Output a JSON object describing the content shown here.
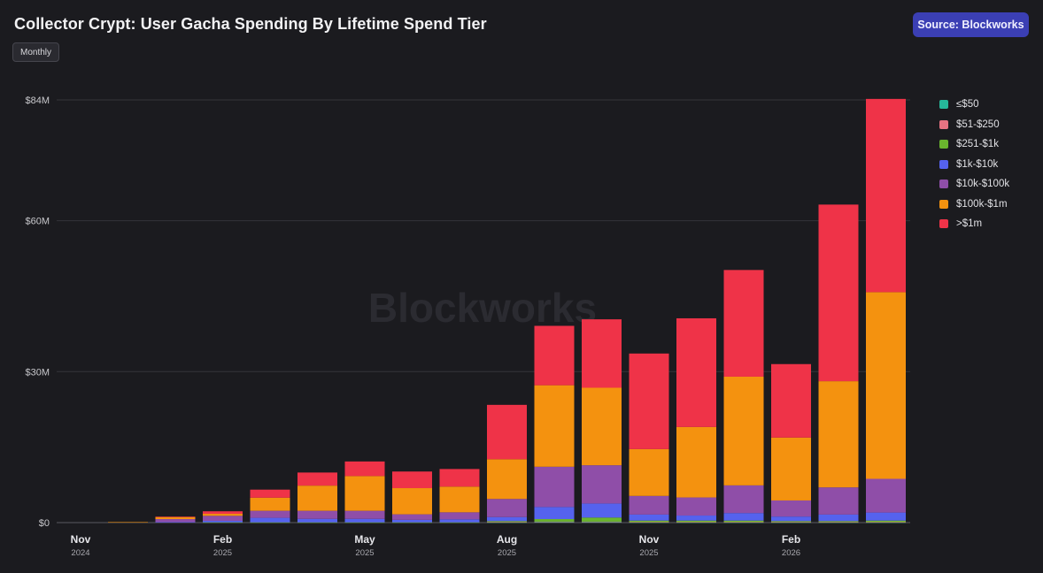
{
  "header": {
    "title": "Collector Crypt: User Gacha Spending By Lifetime Spend Tier",
    "source_label": "Source: Blockworks",
    "period_label": "Monthly"
  },
  "watermark": "Blockworks",
  "colors": {
    "background": "#1b1b1f",
    "accent": "#3b3fb4"
  },
  "chart_data": {
    "type": "bar",
    "stacked": true,
    "title": "Collector Crypt: User Gacha Spending By Lifetime Spend Tier",
    "xlabel": "",
    "ylabel": "",
    "ylim": [
      0,
      84
    ],
    "y_unit": "$M",
    "y_ticks": [
      {
        "value": 0,
        "label": "$0"
      },
      {
        "value": 30,
        "label": "$30M"
      },
      {
        "value": 60,
        "label": "$60M"
      },
      {
        "value": 84,
        "label": "$84M"
      }
    ],
    "x_ticks": [
      {
        "index": 0,
        "month": "Nov",
        "year": "2024"
      },
      {
        "index": 3,
        "month": "Feb",
        "year": "2025"
      },
      {
        "index": 6,
        "month": "May",
        "year": "2025"
      },
      {
        "index": 9,
        "month": "Aug",
        "year": "2025"
      },
      {
        "index": 12,
        "month": "Nov",
        "year": "2025"
      },
      {
        "index": 15,
        "month": "Feb",
        "year": "2026"
      }
    ],
    "categories": [
      "2024-11",
      "2024-12",
      "2025-01",
      "2025-02",
      "2025-03",
      "2025-04",
      "2025-05",
      "2025-06",
      "2025-07",
      "2025-08",
      "2025-09",
      "2025-10",
      "2025-11",
      "2025-12",
      "2026-01",
      "2026-02",
      "2026-03",
      "2026-04"
    ],
    "legend_position": "right",
    "grid": true,
    "series": [
      {
        "name": "≤$50",
        "color": "#26b89a",
        "values": [
          0,
          0,
          0,
          0,
          0,
          0,
          0,
          0,
          0,
          0.05,
          0.1,
          0.1,
          0.05,
          0.05,
          0.05,
          0.05,
          0.05,
          0.05
        ]
      },
      {
        "name": "$51-$250",
        "color": "#e77382",
        "values": [
          0,
          0,
          0,
          0,
          0,
          0,
          0,
          0,
          0,
          0.05,
          0.1,
          0.1,
          0.05,
          0.05,
          0.05,
          0.05,
          0.05,
          0.05
        ]
      },
      {
        "name": "$251-$1k",
        "color": "#6ab52e",
        "values": [
          0,
          0,
          0,
          0.05,
          0.05,
          0.05,
          0.05,
          0.05,
          0.05,
          0.2,
          0.5,
          0.8,
          0.3,
          0.3,
          0.3,
          0.2,
          0.2,
          0.3
        ]
      },
      {
        "name": "$1k-$10k",
        "color": "#5562ee",
        "values": [
          0,
          0,
          0.1,
          0.3,
          0.9,
          0.7,
          0.7,
          0.5,
          0.6,
          0.8,
          2.4,
          2.8,
          1.2,
          1.0,
          1.5,
          0.9,
          1.3,
          1.6
        ]
      },
      {
        "name": "$10k-$100k",
        "color": "#8f4ea8",
        "values": [
          0,
          0,
          0.6,
          1.0,
          1.4,
          1.6,
          1.6,
          1.1,
          1.4,
          3.6,
          8.0,
          7.6,
          3.7,
          3.6,
          5.5,
          3.2,
          5.4,
          6.7
        ]
      },
      {
        "name": "$100k-$1m",
        "color": "#f4920f",
        "values": [
          0,
          0.1,
          0.4,
          0.4,
          2.6,
          5.0,
          6.9,
          5.2,
          5.1,
          7.9,
          16.2,
          15.4,
          9.3,
          14.0,
          21.6,
          12.5,
          21.1,
          37.1
        ]
      },
      {
        "name": ">$1m",
        "color": "#ef3348",
        "values": [
          0,
          0,
          0.1,
          0.5,
          1.6,
          2.6,
          2.9,
          3.3,
          3.5,
          10.8,
          11.8,
          13.6,
          19.0,
          21.6,
          21.2,
          14.6,
          35.1,
          38.4
        ]
      }
    ]
  }
}
